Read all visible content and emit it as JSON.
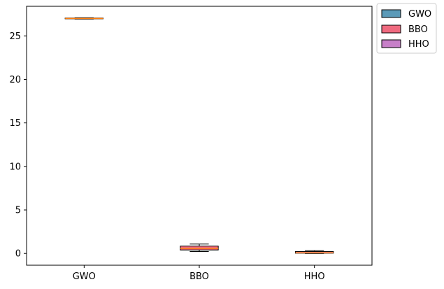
{
  "chart_data": {
    "type": "box",
    "title": "",
    "xlabel": "",
    "ylabel": "",
    "categories": [
      "GWO",
      "BBO",
      "HHO"
    ],
    "ylim": [
      -1.35,
      28.4
    ],
    "yticks": [
      0,
      5,
      10,
      15,
      20,
      25
    ],
    "ytick_labels": [
      "0",
      "5",
      "10",
      "15",
      "20",
      "25"
    ],
    "grid": false,
    "legend_position": "outside-top-right",
    "median_color": "#ff7f0e",
    "series": [
      {
        "name": "GWO",
        "color": "#5b9ab8",
        "min": 26.93,
        "q1": 26.96,
        "median": 27.0,
        "q3": 27.05,
        "max": 27.08
      },
      {
        "name": "BBO",
        "color": "#ef6a7f",
        "min": 0.22,
        "q1": 0.4,
        "median": 0.58,
        "q3": 0.85,
        "max": 1.08
      },
      {
        "name": "HHO",
        "color": "#c77fc8",
        "min": 0.0,
        "q1": 0.03,
        "median": 0.08,
        "q3": 0.22,
        "max": 0.33
      }
    ]
  }
}
